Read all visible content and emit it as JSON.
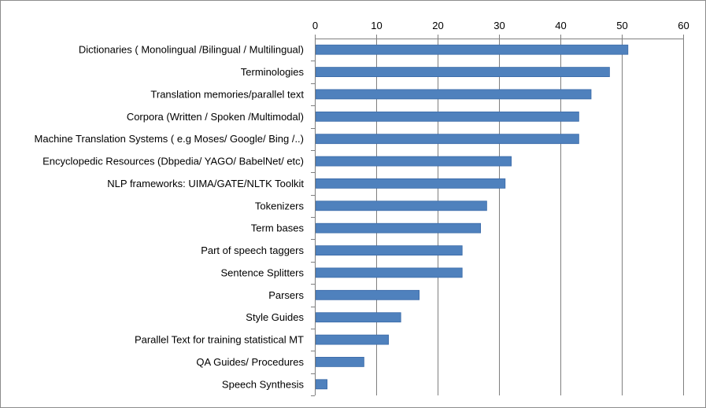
{
  "chart_data": {
    "type": "bar",
    "orientation": "horizontal",
    "categories": [
      "Dictionaries ( Monolingual /Bilingual / Multilingual)",
      "Terminologies",
      "Translation memories/parallel text",
      "Corpora (Written / Spoken /Multimodal)",
      "Machine Translation Systems ( e.g Moses/ Google/ Bing /..)",
      "Encyclopedic Resources (Dbpedia/ YAGO/ BabelNet/ etc)",
      "NLP frameworks: UIMA/GATE/NLTK Toolkit",
      "Tokenizers",
      "Term bases",
      "Part of speech taggers",
      "Sentence Splitters",
      "Parsers",
      "Style Guides",
      "Parallel Text for training statistical MT",
      "QA Guides/ Procedures",
      "Speech Synthesis"
    ],
    "values": [
      51,
      48,
      45,
      43,
      43,
      32,
      31,
      28,
      27,
      24,
      24,
      17,
      14,
      12,
      8,
      2
    ],
    "xlim": [
      0,
      60
    ],
    "x_ticks": [
      "0",
      "10",
      "20",
      "30",
      "40",
      "50",
      "60"
    ],
    "x_axis_position": "top",
    "grid": true,
    "legend": "none",
    "bar_color": "#4f81bd",
    "bar_border_color": "#3a6aa8",
    "grid_color": "#7f7f7f"
  }
}
